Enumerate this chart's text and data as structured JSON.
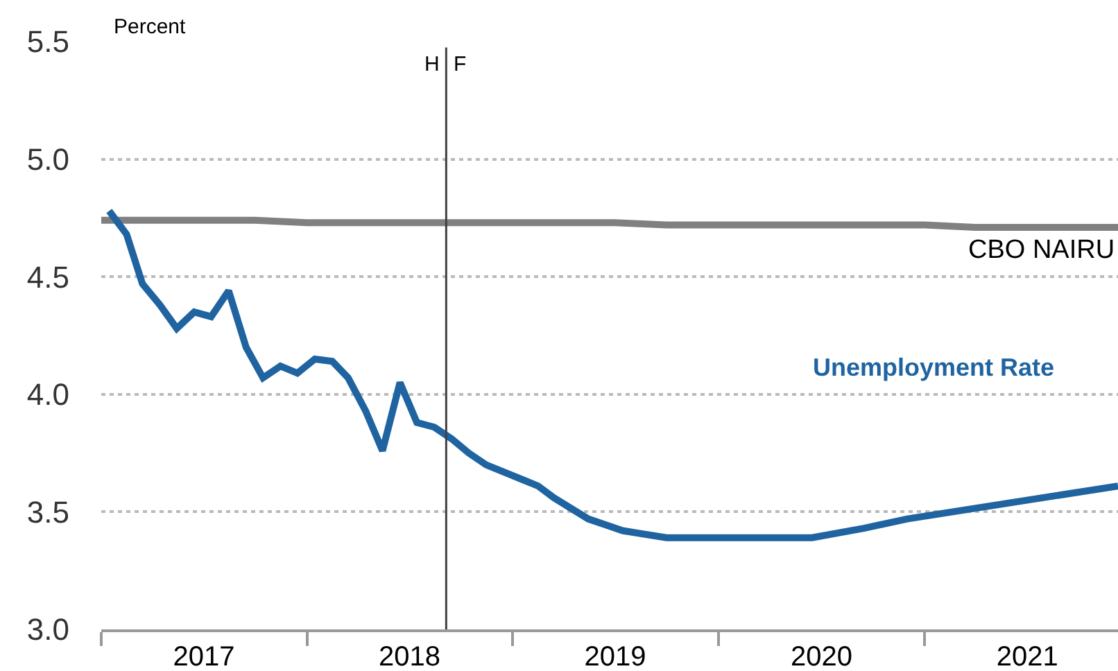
{
  "chart_data": {
    "type": "line",
    "ylabel": "Percent",
    "xlim": [
      "2017-01-01",
      "2021-12-10"
    ],
    "xticks": [
      {
        "value": "2017-01-01",
        "label": null
      },
      {
        "value": "2017-07-02",
        "label": "2017"
      },
      {
        "value": "2018-01-01",
        "label": null
      },
      {
        "value": "2018-07-02",
        "label": "2018"
      },
      {
        "value": "2019-01-01",
        "label": null
      },
      {
        "value": "2019-07-02",
        "label": "2019"
      },
      {
        "value": "2020-01-01",
        "label": null
      },
      {
        "value": "2020-07-02",
        "label": "2020"
      },
      {
        "value": "2021-01-01",
        "label": null
      },
      {
        "value": "2021-07-02",
        "label": "2021"
      }
    ],
    "ylim": [
      3.0,
      5.5
    ],
    "yticks": [
      {
        "value": 3.0,
        "label": "3.0"
      },
      {
        "value": 3.5,
        "label": "3.5"
      },
      {
        "value": 4.0,
        "label": "4.0"
      },
      {
        "value": 4.5,
        "label": "4.5"
      },
      {
        "value": 5.0,
        "label": "5.0"
      },
      {
        "value": 5.5,
        "label": "5.5"
      }
    ],
    "grid": "y",
    "legend": false,
    "marker": "none",
    "line_style": "solid",
    "series": [
      {
        "name": "CBO NAIRU",
        "color": "#808080",
        "x": [
          "2017-01-01",
          "2017-10-01",
          "2018-01-01",
          "2019-07-01",
          "2019-10-01",
          "2021-01-01",
          "2021-04-01",
          "2021-12-10"
        ],
        "values": [
          4.74,
          4.74,
          4.73,
          4.73,
          4.72,
          4.72,
          4.71,
          4.71
        ]
      },
      {
        "name": "Unemployment Rate",
        "color": "#1f64a0",
        "x": [
          "2017-01-15",
          "2017-02-15",
          "2017-03-15",
          "2017-04-15",
          "2017-05-15",
          "2017-06-15",
          "2017-07-15",
          "2017-08-15",
          "2017-09-15",
          "2017-10-15",
          "2017-11-15",
          "2017-12-15",
          "2018-01-15",
          "2018-02-15",
          "2018-03-15",
          "2018-04-15",
          "2018-05-15",
          "2018-06-15",
          "2018-07-15",
          "2018-08-15",
          "2018-09-15",
          "2018-10-15",
          "2018-11-15",
          "2019-02-15",
          "2019-03-15",
          "2019-05-15",
          "2019-07-15",
          "2019-10-01",
          "2020-06-15",
          "2020-09-15",
          "2020-12-01",
          "2021-12-10"
        ],
        "values": [
          4.78,
          4.68,
          4.47,
          4.38,
          4.28,
          4.35,
          4.33,
          4.44,
          4.2,
          4.07,
          4.12,
          4.09,
          4.15,
          4.14,
          4.07,
          3.93,
          3.76,
          4.05,
          3.88,
          3.86,
          3.81,
          3.75,
          3.7,
          3.61,
          3.56,
          3.47,
          3.42,
          3.39,
          3.39,
          3.43,
          3.47,
          3.61
        ]
      }
    ],
    "ref_lines": [
      {
        "axis": "x",
        "value": "2018-09-05",
        "label": null,
        "color": "#404040",
        "line_style": "solid"
      }
    ],
    "annotations": [
      {
        "text": "H",
        "x": "2018-09-05",
        "y": 5.4
      },
      {
        "text": "F",
        "x": "2018-09-05",
        "y": 5.4
      }
    ]
  }
}
